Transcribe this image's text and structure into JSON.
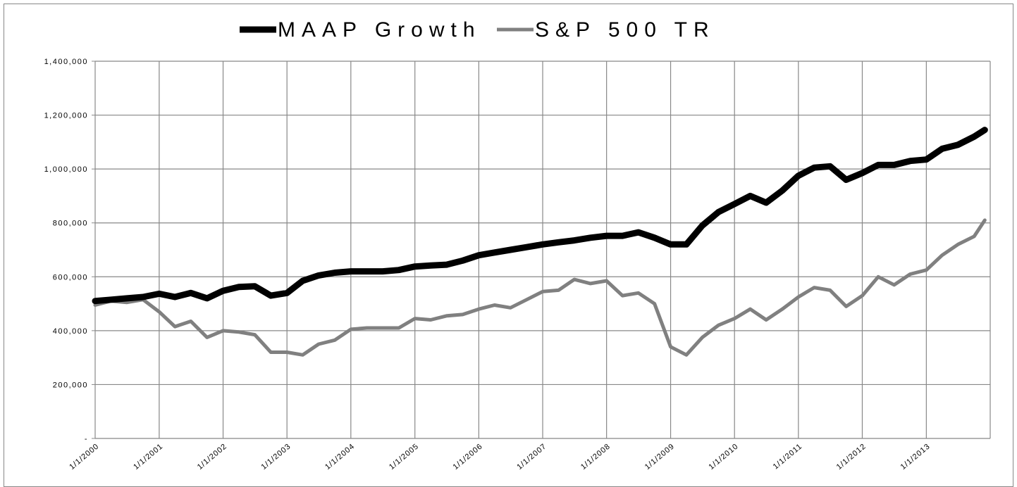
{
  "chart_data": {
    "type": "line",
    "legend": "top",
    "grid": true,
    "x": [
      "2000-01-01",
      "2000-04-01",
      "2000-07-01",
      "2000-10-01",
      "2001-01-01",
      "2001-04-01",
      "2001-07-01",
      "2001-10-01",
      "2002-01-01",
      "2002-04-01",
      "2002-07-01",
      "2002-10-01",
      "2003-01-01",
      "2003-04-01",
      "2003-07-01",
      "2003-10-01",
      "2004-01-01",
      "2004-04-01",
      "2004-07-01",
      "2004-10-01",
      "2005-01-01",
      "2005-04-01",
      "2005-07-01",
      "2005-10-01",
      "2006-01-01",
      "2006-04-01",
      "2006-07-01",
      "2006-10-01",
      "2007-01-01",
      "2007-04-01",
      "2007-07-01",
      "2007-10-01",
      "2008-01-01",
      "2008-04-01",
      "2008-07-01",
      "2008-10-01",
      "2009-01-01",
      "2009-04-01",
      "2009-07-01",
      "2009-10-01",
      "2010-01-01",
      "2010-04-01",
      "2010-07-01",
      "2010-10-01",
      "2011-01-01",
      "2011-04-01",
      "2011-07-01",
      "2011-10-01",
      "2012-01-01",
      "2012-04-01",
      "2012-07-01",
      "2012-10-01",
      "2013-01-01",
      "2013-04-01",
      "2013-07-01",
      "2013-10-01",
      "2013-12-01"
    ],
    "series": [
      {
        "name": "MAAP Growth",
        "color": "#000000",
        "values": [
          510000,
          515000,
          520000,
          525000,
          537000,
          525000,
          540000,
          520000,
          548000,
          562000,
          565000,
          530000,
          540000,
          585000,
          605000,
          615000,
          620000,
          620000,
          620000,
          625000,
          638000,
          642000,
          645000,
          660000,
          680000,
          690000,
          700000,
          710000,
          720000,
          728000,
          735000,
          745000,
          752000,
          752000,
          765000,
          745000,
          720000,
          720000,
          790000,
          840000,
          870000,
          900000,
          875000,
          920000,
          975000,
          1005000,
          1010000,
          960000,
          985000,
          1015000,
          1015000,
          1030000,
          1035000,
          1075000,
          1090000,
          1120000,
          1145000
        ]
      },
      {
        "name": "S&P 500 TR",
        "color": "#808080",
        "values": [
          495000,
          510000,
          505000,
          515000,
          470000,
          415000,
          435000,
          375000,
          400000,
          395000,
          385000,
          320000,
          320000,
          310000,
          350000,
          365000,
          405000,
          410000,
          410000,
          410000,
          445000,
          440000,
          455000,
          460000,
          480000,
          495000,
          485000,
          515000,
          545000,
          550000,
          590000,
          575000,
          585000,
          530000,
          540000,
          500000,
          340000,
          310000,
          375000,
          420000,
          445000,
          480000,
          440000,
          480000,
          525000,
          560000,
          550000,
          490000,
          530000,
          600000,
          570000,
          610000,
          625000,
          680000,
          720000,
          750000,
          810000
        ]
      }
    ],
    "xlim": [
      "2000-01-01",
      "2014-01-01"
    ],
    "xticks": [
      {
        "value": "2000-01-01",
        "label": "1/1/2000"
      },
      {
        "value": "2001-01-01",
        "label": "1/1/2001"
      },
      {
        "value": "2002-01-01",
        "label": "1/1/2002"
      },
      {
        "value": "2003-01-01",
        "label": "1/1/2003"
      },
      {
        "value": "2004-01-01",
        "label": "1/1/2004"
      },
      {
        "value": "2005-01-01",
        "label": "1/1/2005"
      },
      {
        "value": "2006-01-01",
        "label": "1/1/2006"
      },
      {
        "value": "2007-01-01",
        "label": "1/1/2007"
      },
      {
        "value": "2008-01-01",
        "label": "1/1/2008"
      },
      {
        "value": "2009-01-01",
        "label": "1/1/2009"
      },
      {
        "value": "2010-01-01",
        "label": "1/1/2010"
      },
      {
        "value": "2011-01-01",
        "label": "1/1/2011"
      },
      {
        "value": "2012-01-01",
        "label": "1/1/2012"
      },
      {
        "value": "2013-01-01",
        "label": "1/1/2013"
      }
    ],
    "ylim": [
      0,
      1400000
    ],
    "yticks": [
      {
        "value": 0,
        "label": "-"
      },
      {
        "value": 200000,
        "label": "200,000"
      },
      {
        "value": 400000,
        "label": "400,000"
      },
      {
        "value": 600000,
        "label": "600,000"
      },
      {
        "value": 800000,
        "label": "800,000"
      },
      {
        "value": 1000000,
        "label": "1,000,000"
      },
      {
        "value": 1200000,
        "label": "1,200,000"
      },
      {
        "value": 1400000,
        "label": "1,400,000"
      }
    ]
  }
}
